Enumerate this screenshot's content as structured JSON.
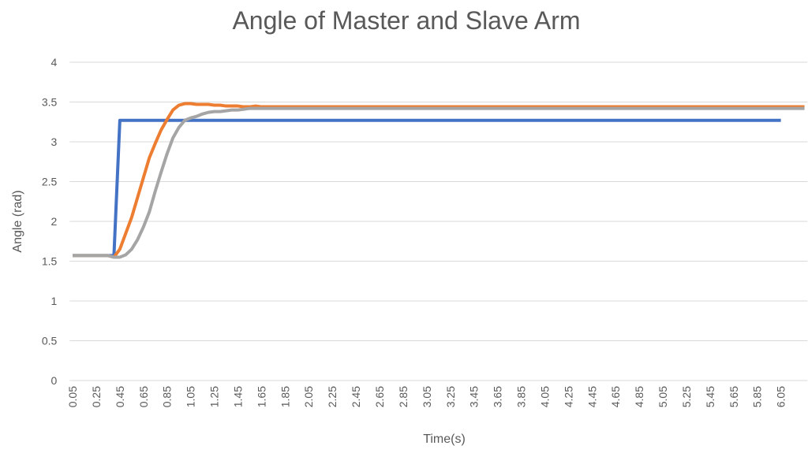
{
  "chart_data": {
    "type": "line",
    "title": "Angle of Master and Slave Arm",
    "x_label": "Time(s)",
    "y_label": "Angle (rad)",
    "categories": [
      "0.05",
      null,
      null,
      null,
      "0.25",
      null,
      null,
      null,
      "0.45",
      null,
      null,
      null,
      "0.65",
      null,
      null,
      null,
      "0.85",
      null,
      null,
      null,
      "1.05",
      null,
      null,
      null,
      "1.25",
      null,
      null,
      null,
      "1.45",
      null,
      null,
      null,
      "1.65",
      null,
      null,
      null,
      "1.85",
      null,
      null,
      null,
      "2.05",
      null,
      null,
      null,
      "2.25",
      null,
      null,
      null,
      "2.45",
      null,
      null,
      null,
      "2.65",
      null,
      null,
      null,
      "2.85",
      null,
      null,
      null,
      "3.05",
      null,
      null,
      null,
      "3.25",
      null,
      null,
      null,
      "3.45",
      null,
      null,
      null,
      "3.65",
      null,
      null,
      null,
      "3.85",
      null,
      null,
      null,
      "4.05",
      null,
      null,
      null,
      "4.25",
      null,
      null,
      null,
      "4.45",
      null,
      null,
      null,
      "4.65",
      null,
      null,
      null,
      "4.85",
      null,
      null,
      null,
      "5.05",
      null,
      null,
      null,
      "5.25",
      null,
      null,
      null,
      "5.45",
      null,
      null,
      null,
      "5.65",
      null,
      null,
      null,
      "5.85",
      null,
      null,
      null,
      "6.05",
      null,
      null,
      null,
      null
    ],
    "series": [
      {
        "color": "#4472c4",
        "values": [
          1.57,
          1.57,
          1.57,
          1.57,
          1.57,
          1.57,
          1.57,
          1.57,
          3.27,
          3.27,
          3.27,
          3.27,
          3.27,
          3.27,
          3.27,
          3.27,
          3.27,
          3.27,
          3.27,
          3.27,
          3.27,
          3.27,
          3.27,
          3.27,
          3.27,
          3.27,
          3.27,
          3.27,
          3.27,
          3.27,
          3.27,
          3.27,
          3.27,
          3.27,
          3.27,
          3.27,
          3.27,
          3.27,
          3.27,
          3.27,
          3.27,
          3.27,
          3.27,
          3.27,
          3.27,
          3.27,
          3.27,
          3.27,
          3.27,
          3.27,
          3.27,
          3.27,
          3.27,
          3.27,
          3.27,
          3.27,
          3.27,
          3.27,
          3.27,
          3.27,
          3.27,
          3.27,
          3.27,
          3.27,
          3.27,
          3.27,
          3.27,
          3.27,
          3.27,
          3.27,
          3.27,
          3.27,
          3.27,
          3.27,
          3.27,
          3.27,
          3.27,
          3.27,
          3.27,
          3.27,
          3.27,
          3.27,
          3.27,
          3.27,
          3.27,
          3.27,
          3.27,
          3.27,
          3.27,
          3.27,
          3.27,
          3.27,
          3.27,
          3.27,
          3.27,
          3.27,
          3.27,
          3.27,
          3.27,
          3.27,
          3.27,
          3.27,
          3.27,
          3.27,
          3.27,
          3.27,
          3.27,
          3.27,
          3.27,
          3.27,
          3.27,
          3.27,
          3.27,
          3.27,
          3.27,
          3.27,
          3.27,
          3.27,
          3.27,
          3.27,
          3.27,
          null,
          null,
          null,
          null
        ]
      },
      {
        "color": "#ed7d31",
        "values": [
          1.57,
          1.57,
          1.57,
          1.57,
          1.57,
          1.57,
          1.57,
          1.55,
          1.65,
          1.85,
          2.05,
          2.3,
          2.55,
          2.8,
          2.98,
          3.15,
          3.28,
          3.4,
          3.46,
          3.48,
          3.48,
          3.47,
          3.47,
          3.47,
          3.46,
          3.46,
          3.45,
          3.45,
          3.45,
          3.44,
          3.44,
          3.45,
          3.44,
          3.44,
          3.44,
          3.44,
          3.44,
          3.44,
          3.44,
          3.44,
          3.44,
          3.44,
          3.44,
          3.44,
          3.44,
          3.44,
          3.44,
          3.44,
          3.44,
          3.44,
          3.44,
          3.44,
          3.44,
          3.44,
          3.44,
          3.44,
          3.44,
          3.44,
          3.44,
          3.44,
          3.44,
          3.44,
          3.44,
          3.44,
          3.44,
          3.44,
          3.44,
          3.44,
          3.44,
          3.44,
          3.44,
          3.44,
          3.44,
          3.44,
          3.44,
          3.44,
          3.44,
          3.44,
          3.44,
          3.44,
          3.44,
          3.44,
          3.44,
          3.44,
          3.44,
          3.44,
          3.44,
          3.44,
          3.44,
          3.44,
          3.44,
          3.44,
          3.44,
          3.44,
          3.44,
          3.44,
          3.44,
          3.44,
          3.44,
          3.44,
          3.44,
          3.44,
          3.44,
          3.44,
          3.44,
          3.44,
          3.44,
          3.44,
          3.44,
          3.44,
          3.44,
          3.44,
          3.44,
          3.44,
          3.44,
          3.44,
          3.44,
          3.44,
          3.44,
          3.44,
          3.44,
          3.44,
          3.44,
          3.44,
          3.44
        ]
      },
      {
        "color": "#a5a5a5",
        "values": [
          1.57,
          1.57,
          1.57,
          1.57,
          1.57,
          1.57,
          1.57,
          1.55,
          1.55,
          1.58,
          1.65,
          1.77,
          1.93,
          2.12,
          2.38,
          2.62,
          2.85,
          3.05,
          3.18,
          3.27,
          3.3,
          3.32,
          3.35,
          3.37,
          3.38,
          3.38,
          3.39,
          3.4,
          3.4,
          3.41,
          3.42,
          3.42,
          3.42,
          3.42,
          3.42,
          3.42,
          3.42,
          3.42,
          3.42,
          3.42,
          3.42,
          3.42,
          3.42,
          3.42,
          3.42,
          3.42,
          3.42,
          3.42,
          3.42,
          3.42,
          3.42,
          3.42,
          3.42,
          3.42,
          3.42,
          3.42,
          3.42,
          3.42,
          3.42,
          3.42,
          3.42,
          3.42,
          3.42,
          3.42,
          3.42,
          3.42,
          3.42,
          3.42,
          3.42,
          3.42,
          3.42,
          3.42,
          3.42,
          3.42,
          3.42,
          3.42,
          3.42,
          3.42,
          3.42,
          3.42,
          3.42,
          3.42,
          3.42,
          3.42,
          3.42,
          3.42,
          3.42,
          3.42,
          3.42,
          3.42,
          3.42,
          3.42,
          3.42,
          3.42,
          3.42,
          3.42,
          3.42,
          3.42,
          3.42,
          3.42,
          3.42,
          3.42,
          3.42,
          3.42,
          3.42,
          3.42,
          3.42,
          3.42,
          3.42,
          3.42,
          3.42,
          3.42,
          3.42,
          3.42,
          3.42,
          3.42,
          3.42,
          3.42,
          3.42,
          3.42,
          3.42,
          3.42,
          3.42,
          3.42,
          3.42
        ]
      }
    ],
    "ylim": [
      0,
      4
    ],
    "yticks": [
      0,
      0.5,
      1,
      1.5,
      2,
      2.5,
      3,
      3.5,
      4
    ],
    "grid": true
  }
}
